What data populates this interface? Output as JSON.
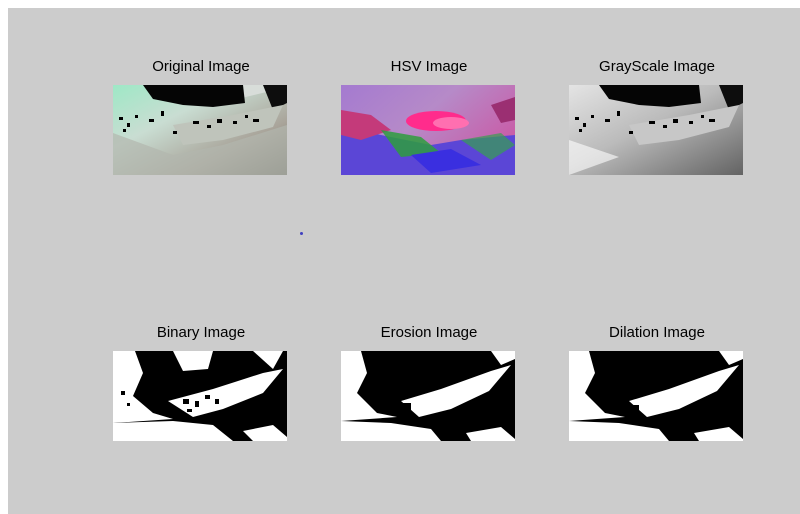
{
  "window": {
    "background_color": "#cccccc"
  },
  "panels": [
    {
      "title": "Original Image"
    },
    {
      "title": "HSV Image"
    },
    {
      "title": "GrayScale Image"
    },
    {
      "title": "Binary Image"
    },
    {
      "title": "Erosion Image"
    },
    {
      "title": "Dilation Image"
    }
  ]
}
